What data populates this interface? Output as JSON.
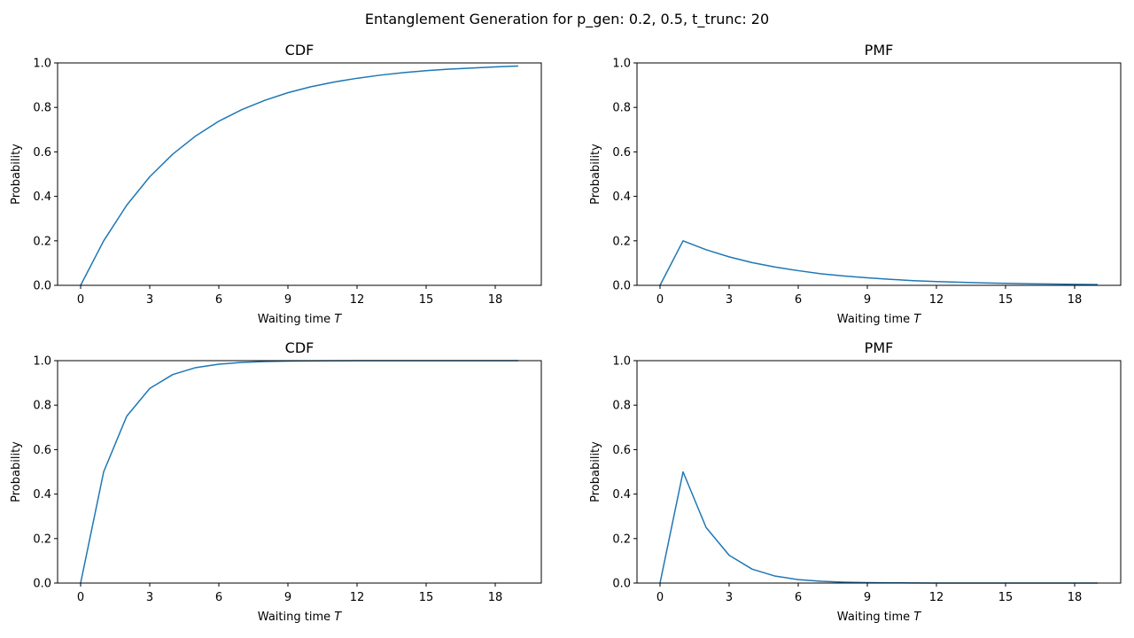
{
  "figure": {
    "suptitle": "Entanglement Generation for p_gen: 0.2, 0.5, t_trunc: 20",
    "line_color": "#1f77b4"
  },
  "chart_data": [
    {
      "type": "line",
      "title": "CDF",
      "xlabel": "Waiting time T",
      "ylabel": "Probability",
      "xlim": [
        -1,
        20
      ],
      "ylim": [
        0,
        1
      ],
      "xticks": [
        0,
        3,
        6,
        9,
        12,
        15,
        18
      ],
      "yticks": [
        0.0,
        0.2,
        0.4,
        0.6,
        0.8,
        1.0
      ],
      "grid": false,
      "series": [
        {
          "x": [
            0,
            1,
            2,
            3,
            4,
            5,
            6,
            7,
            8,
            9,
            10,
            11,
            12,
            13,
            14,
            15,
            16,
            17,
            18,
            19
          ],
          "y": [
            0,
            0.2,
            0.36,
            0.488,
            0.59,
            0.672,
            0.738,
            0.79,
            0.832,
            0.866,
            0.893,
            0.914,
            0.931,
            0.945,
            0.956,
            0.965,
            0.972,
            0.977,
            0.982,
            0.986
          ]
        }
      ]
    },
    {
      "type": "line",
      "title": "PMF",
      "xlabel": "Waiting time T",
      "ylabel": "Probability",
      "xlim": [
        -1,
        20
      ],
      "ylim": [
        0,
        1
      ],
      "xticks": [
        0,
        3,
        6,
        9,
        12,
        15,
        18
      ],
      "yticks": [
        0.0,
        0.2,
        0.4,
        0.6,
        0.8,
        1.0
      ],
      "grid": false,
      "series": [
        {
          "x": [
            0,
            1,
            2,
            3,
            4,
            5,
            6,
            7,
            8,
            9,
            10,
            11,
            12,
            13,
            14,
            15,
            16,
            17,
            18,
            19
          ],
          "y": [
            0,
            0.2,
            0.16,
            0.128,
            0.102,
            0.082,
            0.066,
            0.052,
            0.042,
            0.034,
            0.027,
            0.021,
            0.017,
            0.014,
            0.011,
            0.009,
            0.007,
            0.006,
            0.0045,
            0.0036
          ]
        }
      ]
    },
    {
      "type": "line",
      "title": "CDF",
      "xlabel": "Waiting time T",
      "ylabel": "Probability",
      "xlim": [
        -1,
        20
      ],
      "ylim": [
        0,
        1
      ],
      "xticks": [
        0,
        3,
        6,
        9,
        12,
        15,
        18
      ],
      "yticks": [
        0.0,
        0.2,
        0.4,
        0.6,
        0.8,
        1.0
      ],
      "grid": false,
      "series": [
        {
          "x": [
            0,
            1,
            2,
            3,
            4,
            5,
            6,
            7,
            8,
            9,
            10,
            11,
            12,
            13,
            14,
            15,
            16,
            17,
            18,
            19
          ],
          "y": [
            0,
            0.5,
            0.75,
            0.875,
            0.9375,
            0.96875,
            0.984,
            0.992,
            0.996,
            0.998,
            0.999,
            0.9995,
            0.9998,
            0.9999,
            1,
            1,
            1,
            1,
            1,
            1
          ]
        }
      ]
    },
    {
      "type": "line",
      "title": "PMF",
      "xlabel": "Waiting time T",
      "ylabel": "Probability",
      "xlim": [
        -1,
        20
      ],
      "ylim": [
        0,
        1
      ],
      "xticks": [
        0,
        3,
        6,
        9,
        12,
        15,
        18
      ],
      "yticks": [
        0.0,
        0.2,
        0.4,
        0.6,
        0.8,
        1.0
      ],
      "grid": false,
      "series": [
        {
          "x": [
            0,
            1,
            2,
            3,
            4,
            5,
            6,
            7,
            8,
            9,
            10,
            11,
            12,
            13,
            14,
            15,
            16,
            17,
            18,
            19
          ],
          "y": [
            0,
            0.5,
            0.25,
            0.125,
            0.0625,
            0.03125,
            0.0156,
            0.0078,
            0.0039,
            0.002,
            0.001,
            0.0005,
            0.0002,
            0.0001,
            0,
            0,
            0,
            0,
            0,
            0
          ]
        }
      ]
    }
  ]
}
